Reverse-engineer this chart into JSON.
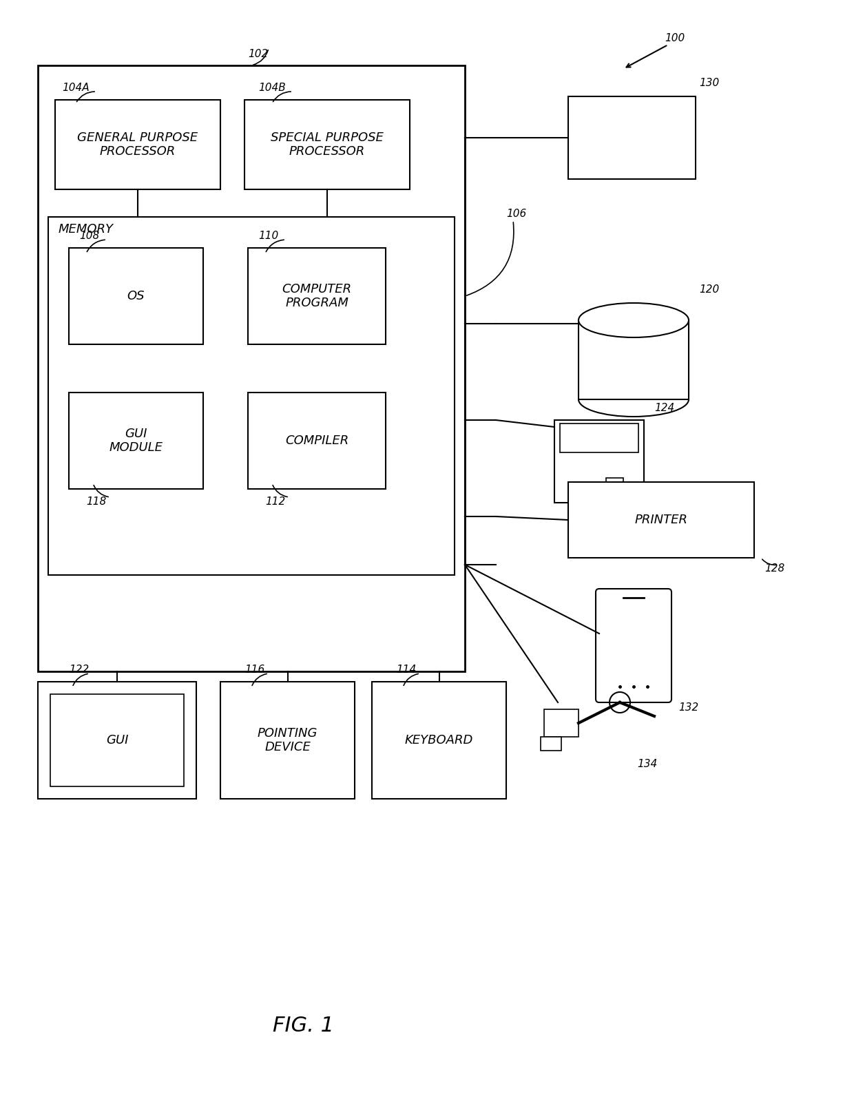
{
  "fig_label": "FIG. 1",
  "ref_100": "100",
  "ref_102": "102",
  "ref_104A": "104A",
  "ref_104B": "104B",
  "ref_106": "106",
  "ref_108": "108",
  "ref_110": "110",
  "ref_112": "112",
  "ref_114": "114",
  "ref_116": "116",
  "ref_118": "118",
  "ref_120": "120",
  "ref_122": "122",
  "ref_124": "124",
  "ref_128": "128",
  "ref_130": "130",
  "ref_132": "132",
  "ref_134": "134",
  "text_memory": "MEMORY",
  "text_gpp": "GENERAL PURPOSE\nPROCESSOR",
  "text_spp": "SPECIAL PURPOSE\nPROCESSOR",
  "text_os": "OS",
  "text_cp": "COMPUTER\nPROGRAM",
  "text_gui_mod": "GUI\nMODULE",
  "text_compiler": "COMPILER",
  "text_gui": "GUI",
  "text_pointing": "POINTING\nDEVICE",
  "text_keyboard": "KEYBOARD",
  "text_printer": "PRINTER",
  "bg_color": "#ffffff",
  "box_color": "#000000",
  "line_color": "#000000",
  "font_color": "#000000",
  "font_size_label": 13,
  "font_size_ref": 11,
  "font_size_fig": 22
}
